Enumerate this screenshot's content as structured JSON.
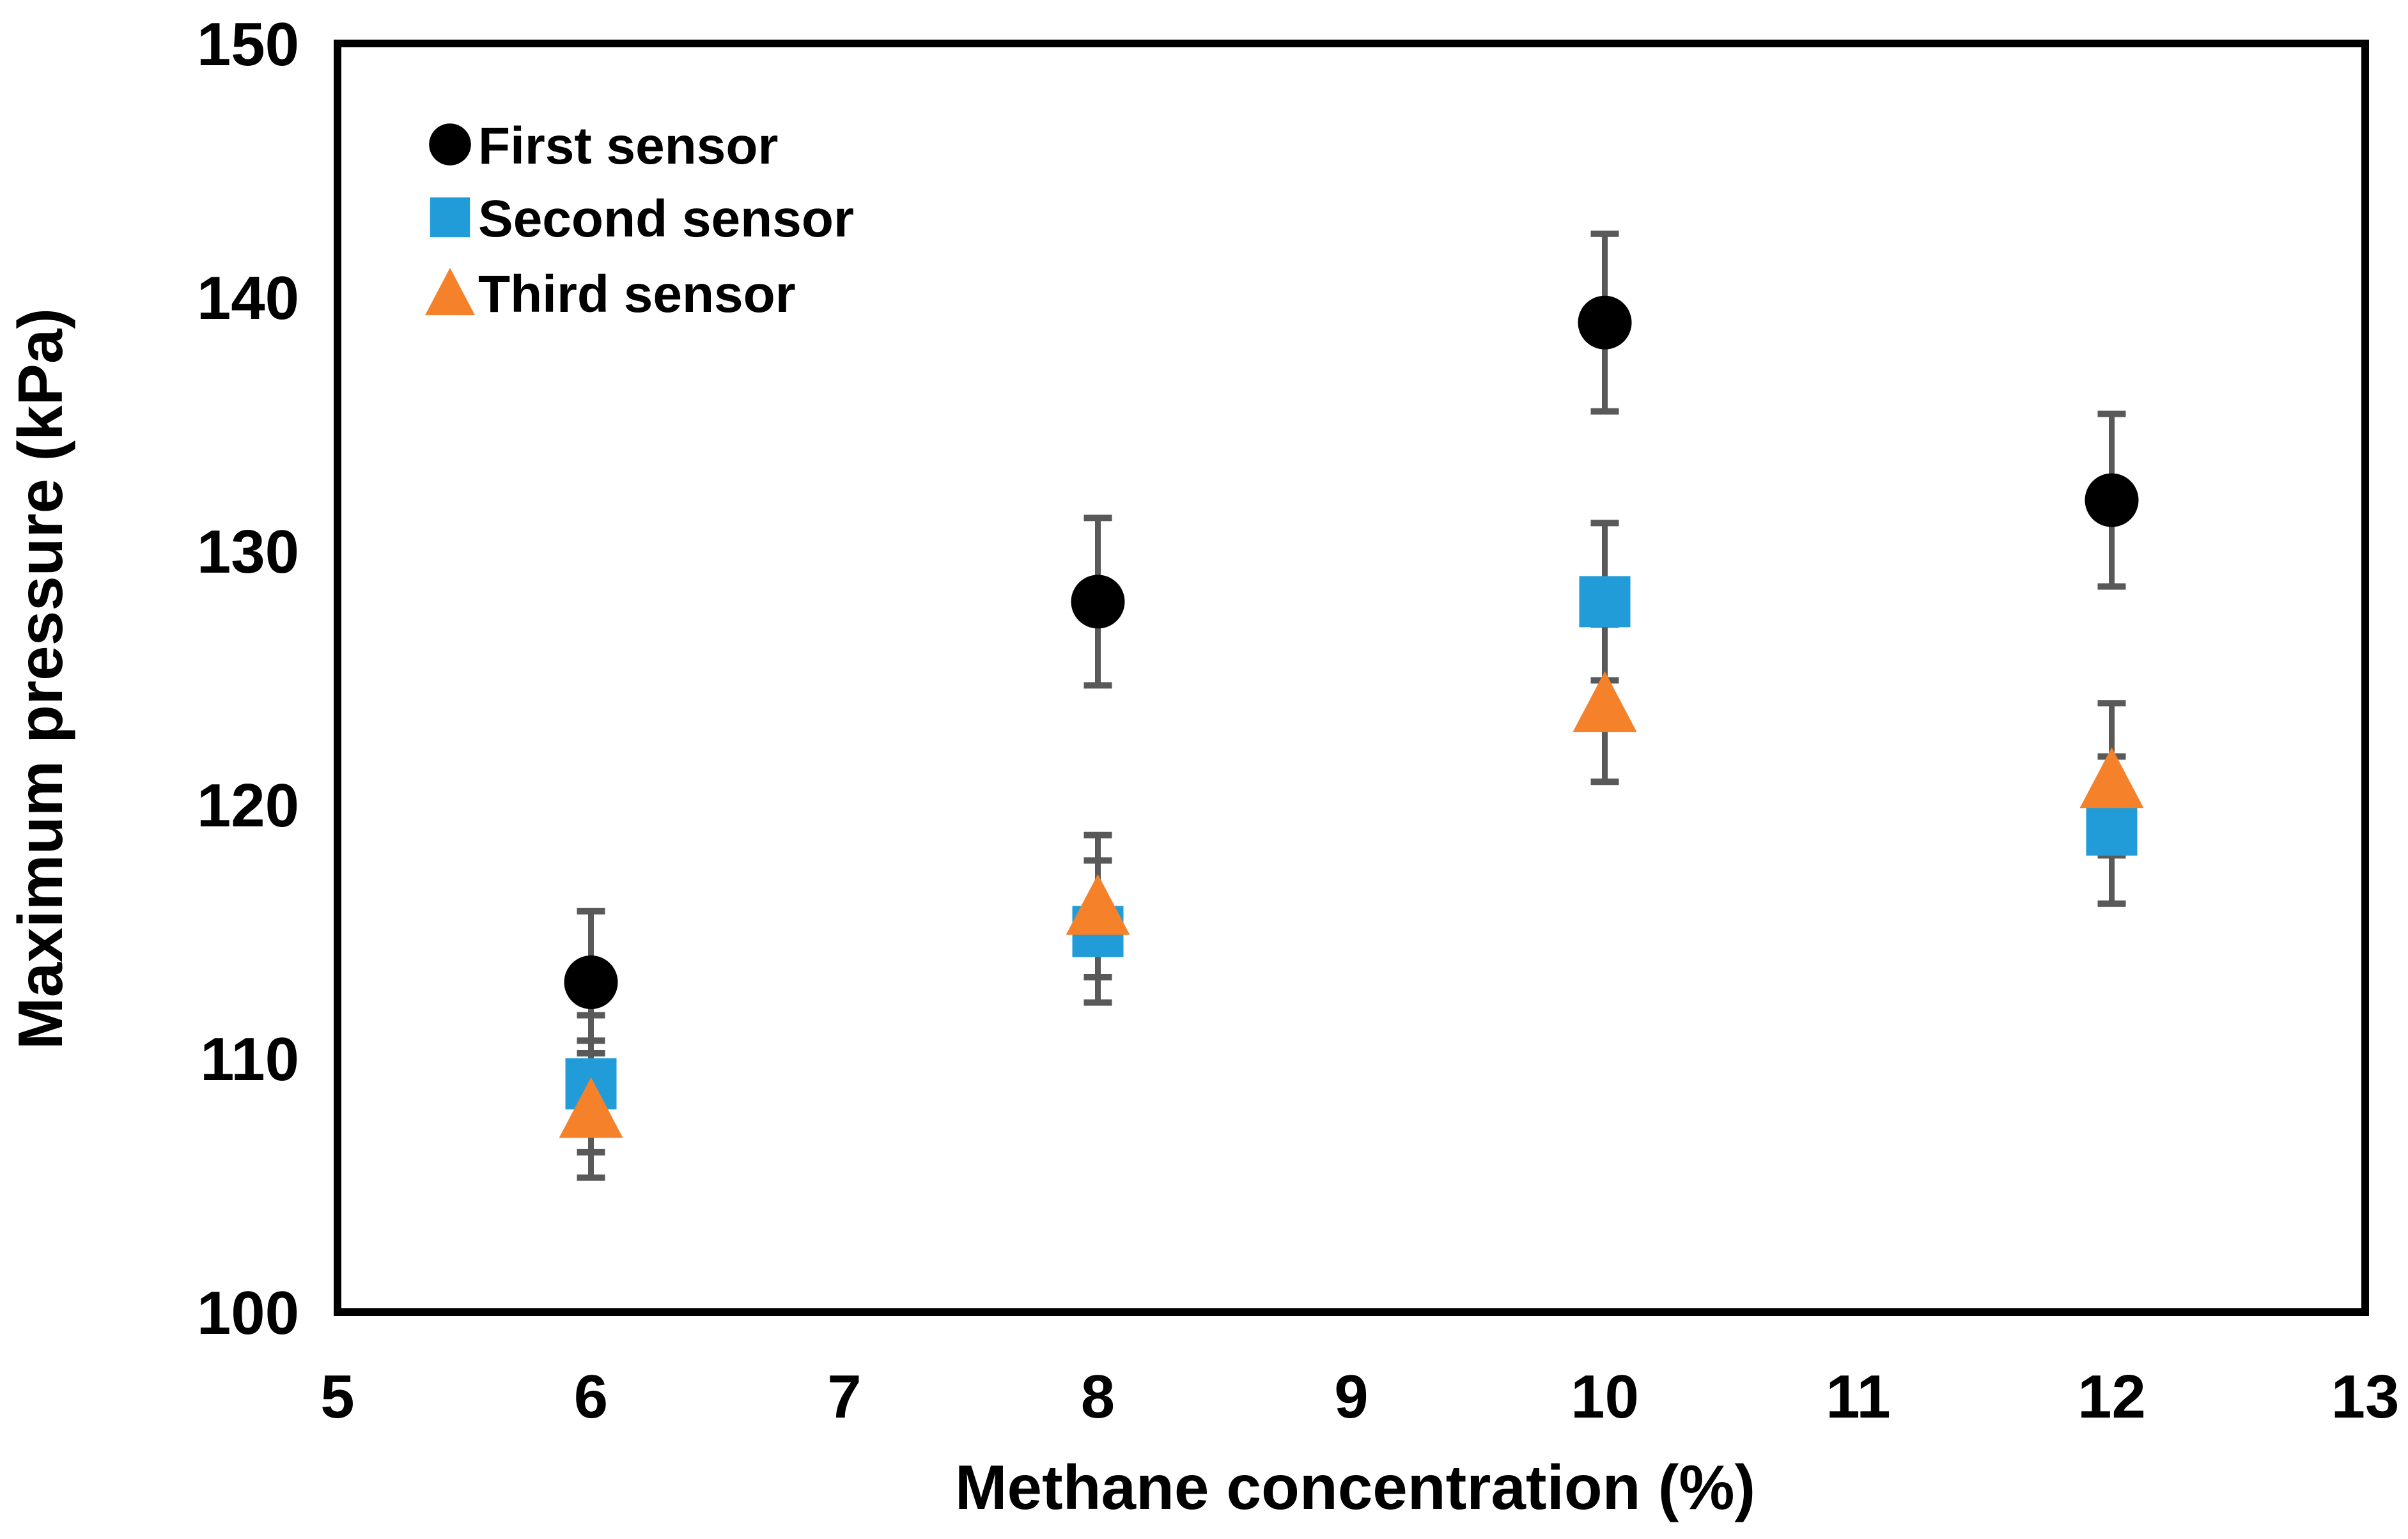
{
  "chart_data": {
    "type": "scatter",
    "title": "",
    "xlabel": "Methane concentration (%)",
    "ylabel": "Maximum pressure (kPa)",
    "x": [
      6,
      8,
      10,
      12
    ],
    "xlim": [
      5,
      13
    ],
    "ylim": [
      100,
      150
    ],
    "x_ticks": [
      5,
      6,
      7,
      8,
      9,
      10,
      11,
      12,
      13
    ],
    "y_ticks": [
      100,
      110,
      120,
      130,
      140,
      150
    ],
    "grid": false,
    "legend_position": "top-left-inside",
    "series": [
      {
        "name": "First sensor",
        "marker": "circle",
        "color": "#000000",
        "values": [
          113,
          128,
          139,
          132
        ],
        "errors": [
          2.8,
          3.3,
          3.5,
          3.4
        ]
      },
      {
        "name": "Second sensor",
        "marker": "square",
        "color": "#219CD8",
        "values": [
          109,
          115,
          128,
          119
        ],
        "errors": [
          2.7,
          2.8,
          3.1,
          2.9
        ]
      },
      {
        "name": "Third sensor",
        "marker": "triangle",
        "color": "#F5812B",
        "values": [
          108,
          116,
          124,
          121
        ],
        "errors": [
          2.7,
          2.8,
          3.1,
          3.0
        ]
      }
    ],
    "error_bar_color": "#595959",
    "axis_color": "#000000",
    "background": "#FFFFFF"
  }
}
